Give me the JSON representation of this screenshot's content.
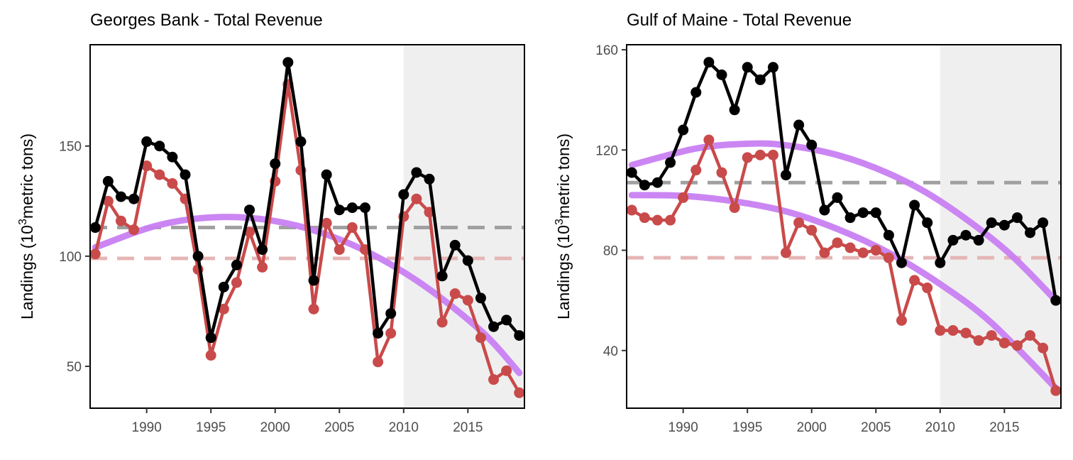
{
  "chart_data": [
    {
      "type": "line",
      "title": "Georges Bank - Total Revenue",
      "ylabel": {
        "pre": "Landings (10",
        "sup": "3",
        "post": "metric tons)"
      },
      "xlim": [
        1985.6,
        2019.4
      ],
      "ylim": [
        31,
        196
      ],
      "xticks": [
        1990,
        1995,
        2000,
        2005,
        2010,
        2015
      ],
      "yticks": [
        50,
        100,
        150
      ],
      "shade_from": 2010,
      "x": [
        1986,
        1987,
        1988,
        1989,
        1990,
        1991,
        1992,
        1993,
        1994,
        1995,
        1996,
        1997,
        1998,
        1999,
        2000,
        2001,
        2002,
        2003,
        2004,
        2005,
        2006,
        2007,
        2008,
        2009,
        2010,
        2011,
        2012,
        2013,
        2014,
        2015,
        2016,
        2017,
        2018,
        2019
      ],
      "series": [
        {
          "values": [
            113,
            134,
            127,
            126,
            152,
            150,
            145,
            137,
            100,
            63,
            86,
            96,
            121,
            103,
            142,
            188,
            152,
            89,
            137,
            121,
            122,
            122,
            65,
            74,
            128,
            138,
            135,
            91,
            105,
            98,
            81,
            68,
            71,
            64
          ],
          "color": "#000000"
        },
        {
          "values": [
            101,
            125,
            116,
            112,
            141,
            137,
            133,
            126,
            94,
            55,
            76,
            88,
            111,
            95,
            134,
            178,
            139,
            76,
            115,
            103,
            113,
            103,
            52,
            65,
            118,
            126,
            120,
            70,
            83,
            80,
            63,
            44,
            48,
            38
          ],
          "color": "#c94a4a"
        }
      ],
      "trend": {
        "x": [
          1986,
          1991,
          1996,
          2001,
          2006,
          2011,
          2016,
          2019
        ],
        "values": [
          104,
          114.2,
          117.8,
          114.8,
          105.2,
          89,
          66.2,
          47
        ],
        "color": "#c880f2"
      },
      "hlines": [
        {
          "value": 113,
          "color": "#a0a0a0"
        },
        {
          "value": 99,
          "color": "#e5b5b5"
        }
      ]
    },
    {
      "type": "line",
      "title": "Gulf of Maine - Total Revenue",
      "ylabel": {
        "pre": "Landings (10",
        "sup": "3",
        "post": "metric tons)"
      },
      "xlim": [
        1985.6,
        2019.4
      ],
      "ylim": [
        17,
        162
      ],
      "xticks": [
        1990,
        1995,
        2000,
        2005,
        2010,
        2015
      ],
      "yticks": [
        40,
        80,
        120,
        160
      ],
      "shade_from": 2010,
      "x": [
        1986,
        1987,
        1988,
        1989,
        1990,
        1991,
        1992,
        1993,
        1994,
        1995,
        1996,
        1997,
        1998,
        1999,
        2000,
        2001,
        2002,
        2003,
        2004,
        2005,
        2006,
        2007,
        2008,
        2009,
        2010,
        2011,
        2012,
        2013,
        2014,
        2015,
        2016,
        2017,
        2018,
        2019
      ],
      "series": [
        {
          "values": [
            111,
            106,
            107,
            115,
            128,
            143,
            155,
            150,
            136,
            153,
            148,
            153,
            110,
            130,
            122,
            96,
            101,
            93,
            95,
            95,
            86,
            75,
            98,
            91,
            75,
            84,
            86,
            84,
            91,
            90,
            93,
            87,
            91,
            60
          ],
          "color": "#000000"
        },
        {
          "values": [
            96,
            93,
            92,
            92,
            101,
            112,
            124,
            111,
            97,
            117,
            118,
            118,
            79,
            91,
            88,
            79,
            83,
            81,
            79,
            80,
            77,
            52,
            68,
            65,
            48,
            48,
            47,
            44,
            46,
            43,
            42,
            46,
            41,
            24
          ],
          "color": "#c94a4a"
        }
      ],
      "trend": [
        {
          "x": [
            1986,
            1991,
            1995,
            1998,
            2002,
            2006,
            2010,
            2015,
            2019
          ],
          "values": [
            114,
            120.6,
            122.5,
            121.9,
            118,
            110.6,
            99.6,
            80.5,
            60
          ],
          "color": "#c880f2"
        },
        {
          "x": [
            1986,
            1990,
            1994,
            1998,
            2002,
            2006,
            2010,
            2014,
            2019
          ],
          "values": [
            102,
            101.7,
            99.5,
            95.5,
            88.5,
            79,
            66.5,
            51,
            25
          ],
          "color": "#c880f2"
        }
      ],
      "hlines": [
        {
          "value": 107,
          "color": "#a0a0a0"
        },
        {
          "value": 77,
          "color": "#e5b5b5"
        }
      ]
    }
  ]
}
